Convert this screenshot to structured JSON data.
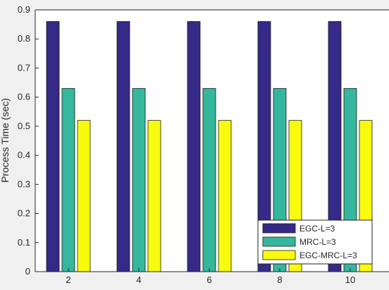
{
  "chart_data": {
    "type": "bar",
    "title": "",
    "xlabel": "",
    "ylabel": "Process Time (sec)",
    "categories": [
      "2",
      "4",
      "6",
      "8",
      "10"
    ],
    "ylim": [
      0,
      0.9
    ],
    "yticks": [
      "0",
      "0.1",
      "0.2",
      "0.3",
      "0.4",
      "0.5",
      "0.6",
      "0.7",
      "0.8",
      "0.9"
    ],
    "grid": false,
    "legend_position": "bottom-right",
    "series": [
      {
        "name": "EGC-L=3",
        "color": "#352a87",
        "values": [
          0.86,
          0.86,
          0.86,
          0.86,
          0.86
        ]
      },
      {
        "name": "MRC-L=3",
        "color": "#35b79d",
        "values": [
          0.63,
          0.63,
          0.63,
          0.63,
          0.63
        ]
      },
      {
        "name": "EGC-MRC-L=3",
        "color": "#f9fb0e",
        "values": [
          0.52,
          0.52,
          0.52,
          0.52,
          0.52
        ]
      }
    ]
  }
}
